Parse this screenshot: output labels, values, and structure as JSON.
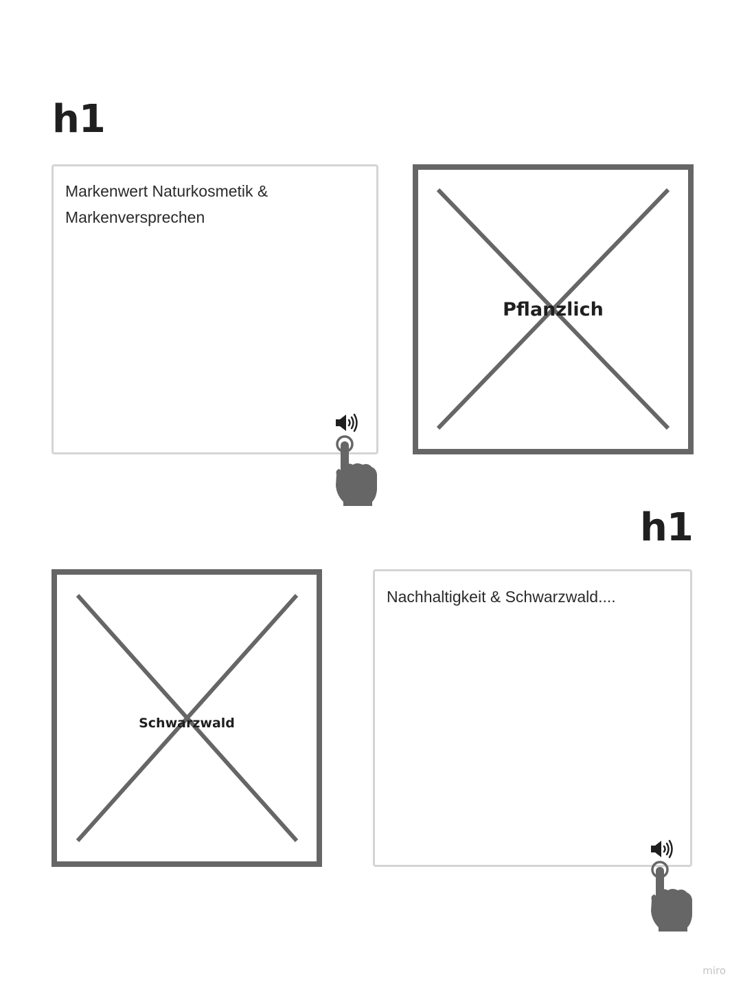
{
  "headings": [
    "h1",
    "h1"
  ],
  "text_boxes": [
    {
      "lines": [
        "Markenwert Naturkosmetik &",
        "Markenversprechen"
      ]
    },
    {
      "lines": [
        "Nachhaltigkeit & Schwarzwald...."
      ]
    }
  ],
  "image_placeholders": [
    {
      "label": "Pflanzlich"
    },
    {
      "label": "Schwarzwald"
    }
  ],
  "icons": {
    "speaker": "speaker-icon",
    "hand": "pointing-hand-icon"
  },
  "colors": {
    "placeholder_stroke": "#666666",
    "box_border": "#d4d4d4",
    "text": "#2a2a2a"
  },
  "watermark": "miro"
}
